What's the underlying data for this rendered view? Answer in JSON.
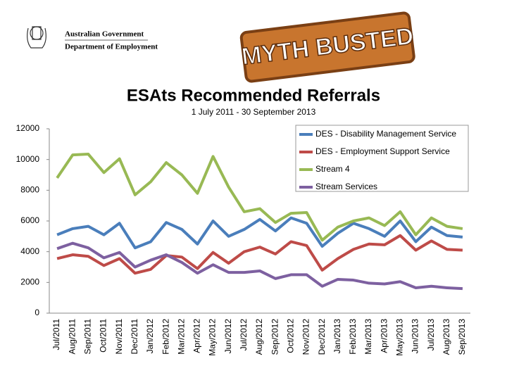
{
  "branding": {
    "government": "Australian Government",
    "department": "Department of Employment",
    "stamp": "MYTH BUSTED"
  },
  "chart_data": {
    "type": "line",
    "title": "ESAts Recommended Referrals",
    "subtitle": "1 July 2011 - 30 September 2013",
    "categories": [
      "Jul/2011",
      "Aug/2011",
      "Sep/2011",
      "Oct/2011",
      "Nov/2011",
      "Dec/2011",
      "Jan/2012",
      "Feb/2012",
      "Mar/2012",
      "Apr/2012",
      "May/2012",
      "Jun/2012",
      "Jul/2012",
      "Aug/2012",
      "Sep/2012",
      "Oct/2012",
      "Nov/2012",
      "Dec/2012",
      "Jan/2013",
      "Feb/2013",
      "Mar/2013",
      "Apr/2013",
      "May/2013",
      "Jun/2013",
      "Jul/2013",
      "Aug/2013",
      "Sep/2013"
    ],
    "series": [
      {
        "name": "DES - Disability Management Service",
        "color": "#4a7ebb",
        "values": [
          5100,
          5500,
          5650,
          5100,
          5850,
          4250,
          4650,
          5900,
          5450,
          4500,
          6000,
          5000,
          5450,
          6100,
          5350,
          6200,
          5850,
          4350,
          5200,
          5850,
          5500,
          5000,
          6000,
          4650,
          5600,
          5050,
          4950
        ]
      },
      {
        "name": "DES - Employment Support Service",
        "color": "#be4b48",
        "values": [
          3550,
          3800,
          3700,
          3100,
          3550,
          2600,
          2850,
          3750,
          3650,
          2900,
          3950,
          3250,
          4000,
          4300,
          3850,
          4650,
          4400,
          2800,
          3550,
          4150,
          4500,
          4450,
          5050,
          4100,
          4700,
          4150,
          4100
        ]
      },
      {
        "name": "Stream 4",
        "color": "#98b954",
        "values": [
          8800,
          10300,
          10350,
          9150,
          10050,
          7700,
          8550,
          9800,
          9000,
          7800,
          10200,
          8200,
          6600,
          6800,
          5900,
          6500,
          6550,
          4750,
          5600,
          6000,
          6200,
          5700,
          6600,
          5100,
          6200,
          5650,
          5500
        ]
      },
      {
        "name": "Stream Services",
        "color": "#7d60a0",
        "values": [
          4200,
          4550,
          4250,
          3600,
          3950,
          3000,
          3450,
          3800,
          3300,
          2600,
          3150,
          2650,
          2650,
          2750,
          2250,
          2500,
          2500,
          1750,
          2200,
          2150,
          1950,
          1900,
          2050,
          1650,
          1750,
          1650,
          1600
        ]
      }
    ],
    "ylim": [
      0,
      12000
    ],
    "yticks": [
      0,
      2000,
      4000,
      6000,
      8000,
      10000,
      12000
    ],
    "grid": false,
    "legend": "top-right"
  }
}
